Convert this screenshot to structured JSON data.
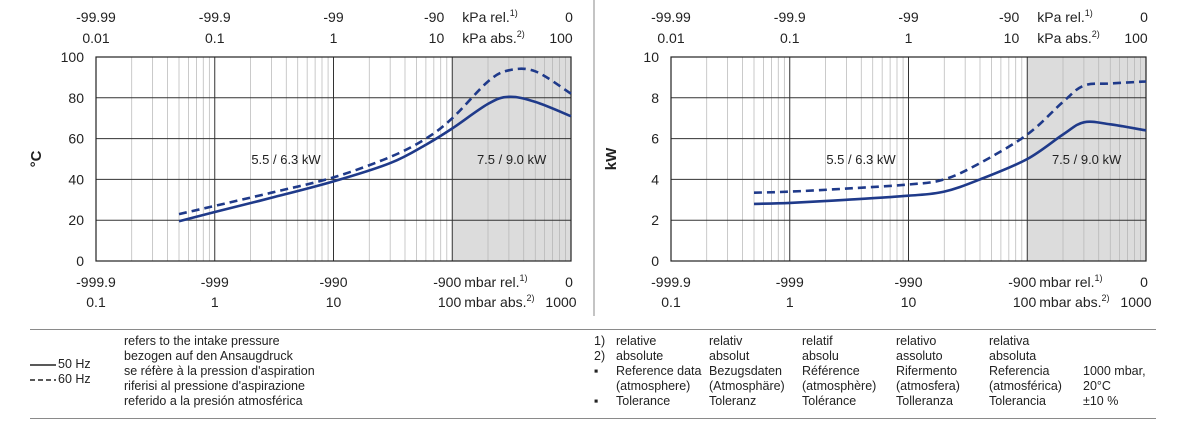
{
  "chart_data": [
    {
      "type": "line",
      "ylabel": "°C",
      "ylim": [
        0,
        100
      ],
      "y_ticks": [
        "0",
        "20",
        "40",
        "60",
        "80",
        "100"
      ],
      "x_scale": "log",
      "xlim_mbar_abs": [
        0.1,
        1000
      ],
      "bottom_rel_ticks": [
        "-999.9",
        "-999",
        "-990",
        "-900",
        "0"
      ],
      "bottom_abs_ticks": [
        "0.1",
        "1",
        "10",
        "100",
        "1000"
      ],
      "bottom_rel_unit": "mbar rel.",
      "bottom_abs_unit": "mbar abs.",
      "top_rel_ticks": [
        "-99.99",
        "-99.9",
        "-99",
        "-90",
        "0"
      ],
      "top_abs_ticks": [
        "0.01",
        "0.1",
        "1",
        "10",
        "100"
      ],
      "top_rel_unit": "kPa rel.",
      "top_abs_unit": "kPa abs.",
      "sup1": "1)",
      "sup2": "2)",
      "shaded_from_mbar_abs": 100,
      "grid": true,
      "zone_labels": [
        "5.5 / 6.3 kW",
        "7.5 / 9.0 kW"
      ],
      "series": [
        {
          "name": "50 Hz",
          "style": "solid",
          "color": "#1f3a8a",
          "x": [
            0.5,
            1,
            3,
            10,
            30,
            60,
            100,
            200,
            300,
            500,
            1000
          ],
          "y": [
            19.5,
            24,
            31,
            39,
            48,
            57,
            65,
            77,
            80.5,
            78,
            71
          ]
        },
        {
          "name": "60 Hz",
          "style": "dashed",
          "color": "#1f3a8a",
          "x": [
            0.5,
            1,
            3,
            10,
            30,
            60,
            100,
            200,
            300,
            500,
            1000
          ],
          "y": [
            23,
            27,
            33.5,
            41,
            51,
            60,
            70,
            88,
            93.5,
            93,
            82
          ]
        }
      ]
    },
    {
      "type": "line",
      "ylabel": "kW",
      "ylim": [
        0,
        10
      ],
      "y_ticks": [
        "0",
        "2",
        "4",
        "6",
        "8",
        "10"
      ],
      "x_scale": "log",
      "xlim_mbar_abs": [
        0.1,
        1000
      ],
      "bottom_rel_ticks": [
        "-999.9",
        "-999",
        "-990",
        "-900",
        "0"
      ],
      "bottom_abs_ticks": [
        "0.1",
        "1",
        "10",
        "100",
        "1000"
      ],
      "bottom_rel_unit": "mbar rel.",
      "bottom_abs_unit": "mbar abs.",
      "top_rel_ticks": [
        "-99.99",
        "-99.9",
        "-99",
        "-90",
        "0"
      ],
      "top_abs_ticks": [
        "0.01",
        "0.1",
        "1",
        "10",
        "100"
      ],
      "top_rel_unit": "kPa rel.",
      "top_abs_unit": "kPa abs.",
      "sup1": "1)",
      "sup2": "2)",
      "shaded_from_mbar_abs": 100,
      "grid": true,
      "zone_labels": [
        "5.5 / 6.3 kW",
        "7.5 / 9.0 kW"
      ],
      "series": [
        {
          "name": "50 Hz",
          "style": "solid",
          "color": "#1f3a8a",
          "x": [
            0.5,
            1,
            3,
            10,
            20,
            40,
            100,
            200,
            300,
            500,
            1000
          ],
          "y": [
            2.8,
            2.85,
            3.0,
            3.2,
            3.4,
            4.0,
            5.0,
            6.2,
            6.8,
            6.7,
            6.4
          ]
        },
        {
          "name": "60 Hz",
          "style": "dashed",
          "color": "#1f3a8a",
          "x": [
            0.5,
            1,
            3,
            10,
            20,
            40,
            100,
            200,
            300,
            500,
            1000
          ],
          "y": [
            3.35,
            3.4,
            3.55,
            3.75,
            4.0,
            4.8,
            6.2,
            7.8,
            8.6,
            8.7,
            8.8
          ]
        }
      ]
    }
  ],
  "legend": {
    "solid_label": "50 Hz",
    "dashed_label": "60 Hz"
  },
  "footnote_left": [
    "refers to the intake pressure",
    "bezogen auf den Ansaugdruck",
    "se réfère à la pression d'aspiration",
    "riferisi al pressione d'aspirazione",
    "referido a la presión atmosférica"
  ],
  "footnote_right": {
    "markers": [
      "1)",
      "2)",
      "▪",
      "",
      "▪"
    ],
    "columns": [
      [
        "relative",
        "absolute",
        "Reference data",
        "(atmosphere)",
        "Tolerance"
      ],
      [
        "relativ",
        "absolut",
        "Bezugsdaten",
        "(Atmosphäre)",
        "Toleranz"
      ],
      [
        "relatif",
        "absolu",
        "Référence",
        "(atmosphère)",
        "Tolérance"
      ],
      [
        "relativo",
        "assoluto",
        "Rifermento",
        "(atmosfera)",
        "Tolleranza"
      ],
      [
        "relativa",
        "absoluta",
        "Referencia",
        "(atmosférica)",
        "Tolerancia"
      ],
      [
        "",
        "",
        "1000 mbar,",
        "20°C",
        "±10 %"
      ]
    ]
  }
}
